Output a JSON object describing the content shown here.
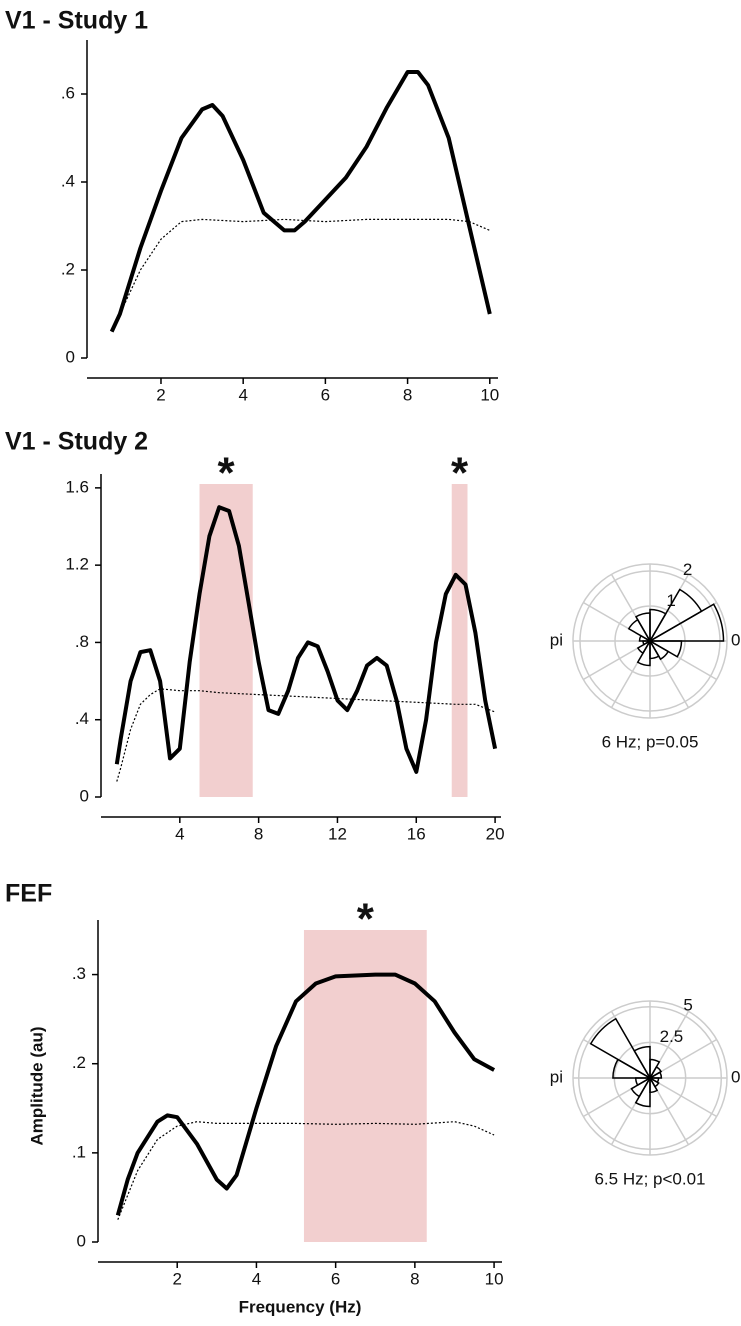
{
  "chart_data": [
    {
      "type": "line",
      "title": "V1 - Study 1",
      "xlim": [
        0.2,
        10.2
      ],
      "xticks": [
        2,
        4,
        6,
        8,
        10
      ],
      "ylim": [
        0,
        0.7
      ],
      "yticks": [
        0,
        {
          "value": 0.2,
          "label": ".2"
        },
        {
          "value": 0.4,
          "label": ".4"
        },
        {
          "value": 0.6,
          "label": ".6"
        }
      ],
      "series": [
        {
          "style": "solid",
          "color": "#000000",
          "x": [
            0.8,
            1,
            1.5,
            2,
            2.5,
            3,
            3.25,
            3.5,
            4,
            4.5,
            5,
            5.25,
            5.5,
            6,
            6.5,
            7,
            7.5,
            8,
            8.25,
            8.5,
            9,
            9.5,
            10
          ],
          "values": [
            0.06,
            0.1,
            0.25,
            0.38,
            0.5,
            0.565,
            0.575,
            0.55,
            0.45,
            0.33,
            0.29,
            0.29,
            0.31,
            0.36,
            0.41,
            0.48,
            0.57,
            0.65,
            0.65,
            0.62,
            0.5,
            0.3,
            0.1
          ]
        },
        {
          "style": "dotted",
          "color": "#000000",
          "x": [
            0.8,
            1,
            1.5,
            2,
            2.5,
            3,
            4,
            5,
            6,
            7,
            8,
            9,
            9.5,
            10
          ],
          "values": [
            0.06,
            0.1,
            0.2,
            0.27,
            0.31,
            0.315,
            0.31,
            0.315,
            0.31,
            0.315,
            0.315,
            0.315,
            0.31,
            0.29
          ]
        }
      ]
    },
    {
      "type": "line",
      "title": "V1 - Study 2",
      "xlim": [
        0,
        20.3
      ],
      "xticks": [
        4,
        8,
        12,
        16,
        20
      ],
      "ylim": [
        0,
        1.62
      ],
      "yticks": [
        0,
        {
          "value": 0.4,
          "label": ".4"
        },
        {
          "value": 0.8,
          "label": ".8"
        },
        1.2,
        1.6
      ],
      "highlights": [
        {
          "range": [
            5.0,
            7.7
          ],
          "label": "*"
        },
        {
          "range": [
            17.8,
            18.6
          ],
          "label": "*"
        }
      ],
      "highlight_color": "#f2cfcf",
      "series": [
        {
          "style": "solid",
          "color": "#000000",
          "x": [
            0.8,
            1,
            1.5,
            2,
            2.5,
            3,
            3.5,
            4,
            4.5,
            5,
            5.5,
            6,
            6.5,
            7,
            7.5,
            8,
            8.5,
            9,
            9.5,
            10,
            10.5,
            11,
            11.5,
            12,
            12.5,
            13,
            13.5,
            14,
            14.5,
            15,
            15.5,
            16,
            16.5,
            17,
            17.5,
            18,
            18.5,
            19,
            19.5,
            20
          ],
          "values": [
            0.17,
            0.3,
            0.6,
            0.75,
            0.76,
            0.6,
            0.2,
            0.25,
            0.7,
            1.05,
            1.35,
            1.5,
            1.48,
            1.3,
            1.0,
            0.7,
            0.45,
            0.43,
            0.55,
            0.72,
            0.8,
            0.78,
            0.65,
            0.5,
            0.45,
            0.55,
            0.68,
            0.72,
            0.68,
            0.5,
            0.25,
            0.13,
            0.4,
            0.8,
            1.05,
            1.15,
            1.1,
            0.85,
            0.5,
            0.25
          ]
        },
        {
          "style": "dotted",
          "color": "#000000",
          "x": [
            0.8,
            1,
            1.5,
            2,
            2.5,
            3,
            4,
            5,
            6,
            8,
            10,
            12,
            14,
            16,
            18,
            19,
            20
          ],
          "values": [
            0.08,
            0.15,
            0.35,
            0.48,
            0.53,
            0.56,
            0.55,
            0.55,
            0.54,
            0.53,
            0.52,
            0.51,
            0.5,
            0.49,
            0.48,
            0.48,
            0.44
          ]
        }
      ]
    },
    {
      "type": "polar",
      "caption": "6 Hz; p=0.05",
      "angle_labels": [
        "0",
        "pi"
      ],
      "rlim": [
        0,
        2.2
      ],
      "rticks": [
        1,
        2
      ],
      "color": "#000000",
      "values": [
        2.1,
        1.7,
        0.9,
        0.8,
        0.7,
        0.3,
        0.2,
        0.4,
        0.7,
        0.5,
        0.6,
        0.9
      ]
    },
    {
      "type": "line",
      "title": "FEF",
      "xlabel": "Frequency (Hz)",
      "ylabel": "Amplitude (au)",
      "xlim": [
        0,
        10.2
      ],
      "xticks": [
        2,
        4,
        6,
        8,
        10
      ],
      "ylim": [
        0,
        0.35
      ],
      "yticks": [
        0,
        {
          "value": 0.1,
          "label": ".1"
        },
        {
          "value": 0.2,
          "label": ".2"
        },
        {
          "value": 0.3,
          "label": ".3"
        }
      ],
      "highlights": [
        {
          "range": [
            5.2,
            8.3
          ],
          "label": "*"
        }
      ],
      "highlight_color": "#f2cfcf",
      "series": [
        {
          "style": "solid",
          "color": "#000000",
          "x": [
            0.5,
            0.75,
            1,
            1.5,
            1.75,
            2,
            2.5,
            3,
            3.25,
            3.5,
            4,
            4.5,
            5,
            5.5,
            6,
            7,
            7.5,
            8,
            8.5,
            9,
            9.5,
            10
          ],
          "values": [
            0.03,
            0.07,
            0.1,
            0.135,
            0.142,
            0.14,
            0.11,
            0.07,
            0.06,
            0.075,
            0.15,
            0.22,
            0.27,
            0.29,
            0.298,
            0.3,
            0.3,
            0.29,
            0.27,
            0.235,
            0.205,
            0.193
          ]
        },
        {
          "style": "dotted",
          "color": "#000000",
          "x": [
            0.5,
            1,
            1.5,
            2,
            2.5,
            3,
            4,
            5,
            6,
            7,
            8,
            9,
            9.5,
            10
          ],
          "values": [
            0.025,
            0.08,
            0.115,
            0.13,
            0.135,
            0.133,
            0.133,
            0.133,
            0.132,
            0.133,
            0.132,
            0.135,
            0.13,
            0.12
          ]
        }
      ]
    },
    {
      "type": "polar",
      "caption": "6.5 Hz; p<0.01",
      "angle_labels": [
        "0",
        "pi"
      ],
      "rlim": [
        0,
        5.4
      ],
      "rticks": [
        2.5,
        5
      ],
      "color": "#000000",
      "values": [
        0.8,
        0.9,
        1.3,
        2.2,
        4.8,
        2.6,
        1.0,
        1.5,
        2.0,
        1.0,
        0.7,
        0.6
      ]
    }
  ]
}
